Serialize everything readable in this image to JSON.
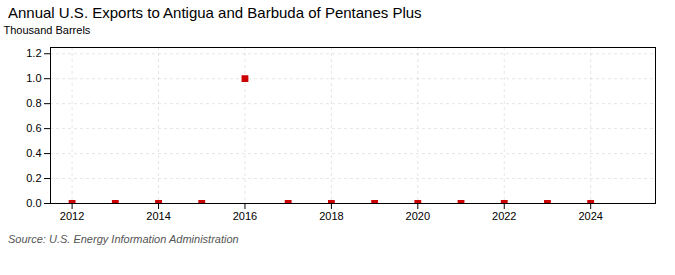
{
  "chart_data": {
    "type": "scatter",
    "title": "Annual U.S. Exports to Antigua and Barbuda of Pentanes Plus",
    "ylabel": "Thousand Barrels",
    "annotations": [
      "Source: U.S. Energy Information Administration"
    ],
    "x": [
      2012,
      2013,
      2014,
      2015,
      2016,
      2017,
      2018,
      2019,
      2020,
      2021,
      2022,
      2023,
      2024
    ],
    "values": [
      0,
      0,
      0,
      0,
      1.0,
      0,
      0,
      0,
      0,
      0,
      0,
      0,
      0
    ],
    "color": "#cc0000",
    "marker": "square",
    "xlim": [
      2011.5,
      2025.5
    ],
    "xticks": [
      2012,
      2014,
      2016,
      2018,
      2020,
      2022,
      2024
    ],
    "ylim": [
      0.0,
      1.25
    ],
    "yticks": [
      {
        "value": 0,
        "label": "0.0"
      },
      0.2,
      0.4,
      0.6,
      0.8,
      {
        "value": 1,
        "label": "1.0"
      },
      1.2
    ],
    "grid": true
  }
}
